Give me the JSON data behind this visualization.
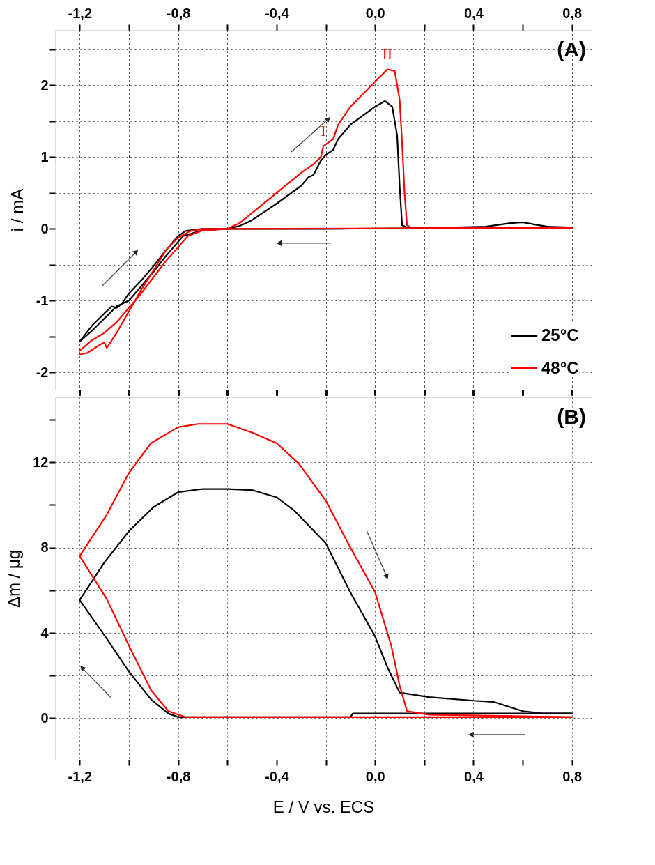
{
  "chart_data": [
    {
      "type": "line",
      "ylabel": "i / mA",
      "legend": "bottom right",
      "grid": true,
      "tick_labels": "y",
      "xlim": [
        -1.3,
        0.88
      ],
      "xticks": [
        {
          "value": -1.2,
          "label": null
        },
        {
          "value": -1.0,
          "label": null
        },
        {
          "value": -0.8,
          "label": null
        },
        {
          "value": -0.6,
          "label": null
        },
        {
          "value": -0.4,
          "label": null
        },
        {
          "value": -0.2,
          "label": null
        },
        {
          "value": 0.0,
          "label": null
        },
        {
          "value": 0.2,
          "label": null
        },
        {
          "value": 0.4,
          "label": null
        },
        {
          "value": 0.6,
          "label": null
        },
        {
          "value": 0.8,
          "label": null
        }
      ],
      "x2lim": [
        -1.3,
        0.88
      ],
      "x2ticks": [
        {
          "value": -1.2,
          "label": "-1,2"
        },
        {
          "value": -1.0,
          "label": null
        },
        {
          "value": -0.8,
          "label": "-0,8"
        },
        {
          "value": -0.6,
          "label": null
        },
        {
          "value": -0.4,
          "label": "-0,4"
        },
        {
          "value": -0.2,
          "label": null
        },
        {
          "value": 0.0,
          "label": "0,0"
        },
        {
          "value": 0.2,
          "label": null
        },
        {
          "value": 0.4,
          "label": "0,4"
        },
        {
          "value": 0.6,
          "label": null
        },
        {
          "value": 0.8,
          "label": "0,8"
        }
      ],
      "ylim": [
        -2.24,
        2.77
      ],
      "yticks": [
        -2,
        {
          "value": -1.5,
          "label": null
        },
        -1,
        {
          "value": -0.5,
          "label": null
        },
        0,
        {
          "value": 0.5,
          "label": null
        },
        1,
        {
          "value": 1.5,
          "label": null
        },
        2,
        {
          "value": 2.5,
          "label": null
        }
      ],
      "annotations": [
        "(A)",
        {
          "text": "I",
          "x": -0.21,
          "y": 1.15
        },
        {
          "text": "II",
          "x": 0.05,
          "y": 2.22
        }
      ],
      "series": [
        {
          "name": "25°C",
          "color": "#000000",
          "x": [
            -1.2,
            -1.15,
            -1.1,
            -1.07,
            -1.05,
            -1.03,
            -1.0,
            -0.95,
            -0.9,
            -0.85,
            -0.8,
            -0.77,
            -0.7,
            -0.6,
            -0.55,
            -0.5,
            -0.4,
            -0.3,
            -0.27,
            -0.25,
            -0.22,
            -0.2,
            -0.17,
            -0.15,
            -0.1,
            0.0,
            0.04,
            0.07,
            0.09,
            0.1,
            0.11,
            0.13,
            0.3,
            0.45,
            0.55,
            0.6,
            0.65,
            0.7,
            0.8
          ],
          "values": [
            -1.57,
            -1.35,
            -1.18,
            -1.08,
            -1.1,
            -1.05,
            -0.9,
            -0.72,
            -0.52,
            -0.3,
            -0.1,
            -0.03,
            0.0,
            0.0,
            0.04,
            0.12,
            0.35,
            0.6,
            0.72,
            0.75,
            0.95,
            1.03,
            1.1,
            1.25,
            1.45,
            1.7,
            1.78,
            1.7,
            1.3,
            0.6,
            0.05,
            0.02,
            0.02,
            0.03,
            0.08,
            0.09,
            0.06,
            0.03,
            0.02
          ]
        },
        {
          "color": "#000000",
          "x": [
            0.8,
            0.2,
            -0.2,
            -0.6,
            -0.7,
            -0.78,
            -0.85,
            -0.9,
            -0.95,
            -1.0,
            -1.05,
            -1.1,
            -1.15,
            -1.2
          ],
          "values": [
            0.02,
            0.01,
            0.0,
            0.0,
            -0.02,
            -0.1,
            -0.38,
            -0.6,
            -0.8,
            -1.0,
            -1.08,
            -1.25,
            -1.42,
            -1.57
          ]
        },
        {
          "name": "48°C",
          "color": "#ff0000",
          "x": [
            -1.2,
            -1.17,
            -1.12,
            -1.1,
            -1.09,
            -1.05,
            -1.0,
            -0.95,
            -0.9,
            -0.85,
            -0.8,
            -0.75,
            -0.7,
            -0.6,
            -0.55,
            -0.5,
            -0.4,
            -0.3,
            -0.25,
            -0.22,
            -0.21,
            -0.19,
            -0.17,
            -0.15,
            -0.1,
            0.0,
            0.05,
            0.08,
            0.1,
            0.11,
            0.12,
            0.13,
            0.15,
            0.8
          ],
          "values": [
            -1.75,
            -1.73,
            -1.62,
            -1.58,
            -1.66,
            -1.45,
            -1.15,
            -0.85,
            -0.58,
            -0.3,
            -0.12,
            -0.03,
            0.0,
            0.0,
            0.08,
            0.22,
            0.5,
            0.78,
            0.9,
            1.0,
            1.15,
            1.2,
            1.25,
            1.45,
            1.7,
            2.05,
            2.22,
            2.2,
            1.8,
            1.2,
            0.5,
            0.05,
            0.01,
            0.01
          ]
        },
        {
          "color": "#ff0000",
          "x": [
            0.8,
            -0.6,
            -0.7,
            -0.76,
            -0.85,
            -0.95,
            -1.05,
            -1.1,
            -1.15,
            -1.2
          ],
          "values": [
            0.01,
            0.0,
            -0.02,
            -0.1,
            -0.45,
            -0.9,
            -1.3,
            -1.45,
            -1.55,
            -1.7
          ]
        }
      ]
    },
    {
      "type": "line",
      "xlabel": "E / V vs. ECS",
      "ylabel": "Δm / μg",
      "grid": true,
      "xlim": [
        -1.3,
        0.88
      ],
      "xticks": [
        {
          "value": -1.2,
          "label": "-1,2"
        },
        {
          "value": -1.0,
          "label": null
        },
        {
          "value": -0.8,
          "label": "-0,8"
        },
        {
          "value": -0.6,
          "label": null
        },
        {
          "value": -0.4,
          "label": "-0,4"
        },
        {
          "value": -0.2,
          "label": null
        },
        {
          "value": 0.0,
          "label": "0,0"
        },
        {
          "value": 0.2,
          "label": null
        },
        {
          "value": 0.4,
          "label": "0,4"
        },
        {
          "value": 0.6,
          "label": null
        },
        {
          "value": 0.8,
          "label": "0,8"
        }
      ],
      "ylim": [
        -1.95,
        15.05
      ],
      "yticks": [
        0,
        {
          "value": 2,
          "label": null
        },
        4,
        {
          "value": 6,
          "label": null
        },
        8,
        {
          "value": 10,
          "label": null
        },
        12,
        {
          "value": 14,
          "label": null
        }
      ],
      "annotations": [
        "(B)"
      ],
      "series": [
        {
          "color": "#000000",
          "x": [
            -1.2,
            -1.1,
            -1.0,
            -0.9,
            -0.8,
            -0.7,
            -0.6,
            -0.5,
            -0.4,
            -0.33,
            -0.2,
            -0.1,
            0.0,
            0.05,
            0.1,
            0.22,
            0.4,
            0.48,
            0.6,
            0.68,
            0.8
          ],
          "values": [
            5.54,
            7.3,
            8.77,
            9.9,
            10.6,
            10.75,
            10.75,
            10.7,
            10.36,
            9.76,
            8.2,
            5.9,
            3.84,
            2.4,
            1.2,
            0.99,
            0.82,
            0.77,
            0.33,
            0.22,
            0.22
          ]
        },
        {
          "color": "#000000",
          "x": [
            0.8,
            -0.09,
            -0.1,
            -0.8,
            -0.84,
            -0.91,
            -1.0,
            -1.09,
            -1.2
          ],
          "values": [
            0.22,
            0.22,
            0.05,
            0.05,
            0.22,
            0.88,
            2.19,
            3.73,
            5.54
          ]
        },
        {
          "color": "#ff0000",
          "x": [
            -1.2,
            -1.09,
            -1.0,
            -0.91,
            -0.8,
            -0.72,
            -0.6,
            -0.5,
            -0.4,
            -0.31,
            -0.2,
            -0.1,
            0.0,
            0.066,
            0.1,
            0.13,
            0.22,
            0.8
          ],
          "values": [
            7.6,
            9.54,
            11.5,
            12.9,
            13.65,
            13.8,
            13.8,
            13.4,
            12.9,
            11.95,
            10.2,
            8.0,
            5.92,
            3.4,
            1.54,
            0.33,
            0.16,
            0.05
          ]
        },
        {
          "color": "#ff0000",
          "x": [
            0.8,
            -0.77,
            -0.84,
            -0.91,
            -1.0,
            -1.09,
            -1.2
          ],
          "values": [
            0.05,
            0.05,
            0.33,
            1.32,
            3.4,
            5.59,
            7.6
          ]
        }
      ]
    }
  ]
}
